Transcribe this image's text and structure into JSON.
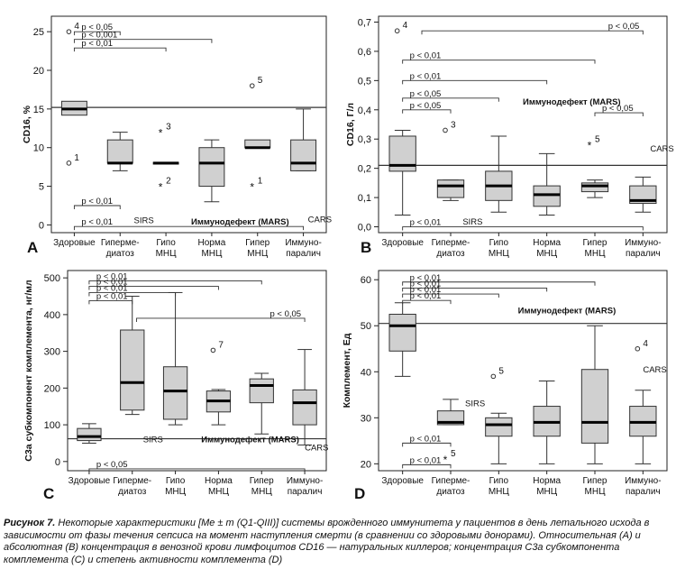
{
  "figure": {
    "caption_label": "Рисунок 7.",
    "caption_text": "Некоторые характеристики [Me ± m (Q1-QIII)] системы врожденного иммунитета у пациентов в день летального исхода в зависимости от фазы течения сепсиса на момент наступления смерти (в сравнении со здоровыми донорами). Относительная (А) и абсолютная (В) концентрация в венозной крови лимфоцитов CD16 — натуральных киллеров; концентрация C3a субкомпонента комплемента (С) и степень активности комплемента (D)",
    "categories": [
      "Здоровые",
      "Гиперме-\nдиатоз",
      "Гипо\nМНЦ",
      "Норма\nМНЦ",
      "Гипер\nМНЦ",
      "Иммуно-\nпаралич"
    ]
  },
  "chart_data": [
    {
      "type": "box",
      "panel_label": "A",
      "ylabel": "CD16, %",
      "ylim": [
        -1,
        27
      ],
      "yticks": [
        0,
        5,
        10,
        15,
        20,
        25
      ],
      "reference_line": 15.2,
      "boxes": [
        {
          "whisker_low": null,
          "q1": 14.2,
          "median": 15,
          "q3": 16,
          "whisker_high": null
        },
        {
          "whisker_low": 7,
          "q1": 8,
          "median": 8,
          "q3": 11,
          "whisker_high": 12
        },
        {
          "whisker_low": null,
          "q1": 7.9,
          "median": 8,
          "q3": 8.1,
          "whisker_high": null
        },
        {
          "whisker_low": 3,
          "q1": 5,
          "median": 8,
          "q3": 10,
          "whisker_high": 11
        },
        {
          "whisker_low": null,
          "q1": 10,
          "median": 10,
          "q3": 11,
          "whisker_high": null
        },
        {
          "whisker_low": 7,
          "q1": 7,
          "median": 8,
          "q3": 11,
          "whisker_high": 15
        }
      ],
      "outliers": [
        {
          "x": 0,
          "y": 8,
          "marker": "o",
          "label": "1"
        },
        {
          "x": 0,
          "y": 25,
          "marker": "o",
          "label": "4"
        },
        {
          "x": 2,
          "y": 12,
          "marker": "*",
          "label": "3"
        },
        {
          "x": 2,
          "y": 5,
          "marker": "*",
          "label": "2"
        },
        {
          "x": 4,
          "y": 18,
          "marker": "o",
          "label": "5"
        },
        {
          "x": 4,
          "y": 5,
          "marker": "*",
          "label": "1"
        }
      ],
      "brackets": [
        {
          "from": 0,
          "to": 1,
          "y": 25,
          "text": "p < 0,05"
        },
        {
          "from": 0,
          "to": 3,
          "y": 24,
          "text": "p < 0,001"
        },
        {
          "from": 0,
          "to": 2,
          "y": 22.9,
          "text": "p < 0,01"
        },
        {
          "from": 0,
          "to": 1,
          "y": 2.5,
          "text": "p < 0,01"
        },
        {
          "from": 0,
          "to": 5,
          "y": -0.2,
          "text": "p < 0,01"
        }
      ],
      "annotations": [
        {
          "x": 1.3,
          "y": 0.7,
          "text": "SIRS"
        },
        {
          "x": 2.55,
          "y": 0.5,
          "text": "Иммунодефект (MARS)"
        },
        {
          "x": 5.1,
          "y": 0.8,
          "text": "CARS"
        }
      ]
    },
    {
      "type": "box",
      "panel_label": "B",
      "ylabel": "CD16, Г/л",
      "ylim": [
        -0.02,
        0.72
      ],
      "yticks": [
        0.0,
        0.1,
        0.2,
        0.3,
        0.4,
        0.5,
        0.6,
        0.7
      ],
      "ytick_labels": [
        "0,0",
        "0,1",
        "0,2",
        "0,3",
        "0,4",
        "0,5",
        "0,6",
        "0,7"
      ],
      "reference_line": 0.21,
      "boxes": [
        {
          "whisker_low": 0.04,
          "q1": 0.19,
          "median": 0.21,
          "q3": 0.31,
          "whisker_high": 0.33
        },
        {
          "whisker_low": 0.09,
          "q1": 0.1,
          "median": 0.14,
          "q3": 0.16,
          "whisker_high": 0.16
        },
        {
          "whisker_low": 0.05,
          "q1": 0.09,
          "median": 0.14,
          "q3": 0.19,
          "whisker_high": 0.31
        },
        {
          "whisker_low": 0.04,
          "q1": 0.07,
          "median": 0.11,
          "q3": 0.14,
          "whisker_high": 0.25
        },
        {
          "whisker_low": 0.1,
          "q1": 0.12,
          "median": 0.14,
          "q3": 0.15,
          "whisker_high": 0.16
        },
        {
          "whisker_low": 0.05,
          "q1": 0.08,
          "median": 0.09,
          "q3": 0.14,
          "whisker_high": 0.17
        }
      ],
      "outliers": [
        {
          "x": 0,
          "y": 0.67,
          "marker": "o",
          "label": "4"
        },
        {
          "x": 1,
          "y": 0.33,
          "marker": "o",
          "label": "3"
        },
        {
          "x": 4,
          "y": 0.28,
          "marker": "*",
          "label": "5"
        }
      ],
      "brackets": [
        {
          "from": 0.4,
          "to": 5,
          "y": 0.67,
          "text": "p < 0,05"
        },
        {
          "from": 0,
          "to": 4,
          "y": 0.57,
          "text": "p < 0,01"
        },
        {
          "from": 0,
          "to": 3,
          "y": 0.5,
          "text": "p < 0,01"
        },
        {
          "from": 0,
          "to": 2,
          "y": 0.44,
          "text": "p < 0,05"
        },
        {
          "from": 0,
          "to": 1,
          "y": 0.4,
          "text": "p < 0,05"
        },
        {
          "from": 4,
          "to": 5,
          "y": 0.39,
          "text": "p < 0,05"
        },
        {
          "from": 0,
          "to": 5,
          "y": 0.0,
          "text": "p < 0,01"
        }
      ],
      "annotations": [
        {
          "x": 2.5,
          "y": 0.43,
          "text": "Иммунодефект (MARS)"
        },
        {
          "x": 1.25,
          "y": 0.02,
          "text": "SIRS"
        },
        {
          "x": 5.15,
          "y": 0.27,
          "text": "CARS"
        }
      ]
    },
    {
      "type": "box",
      "panel_label": "C",
      "ylabel": "C3a субкомпонент комплемента, нг/мл",
      "ylim": [
        -25,
        520
      ],
      "yticks": [
        0,
        100,
        200,
        300,
        400,
        500
      ],
      "reference_line": 62,
      "boxes": [
        {
          "whisker_low": 50,
          "q1": 57,
          "median": 68,
          "q3": 90,
          "whisker_high": 103
        },
        {
          "whisker_low": 128,
          "q1": 140,
          "median": 215,
          "q3": 358,
          "whisker_high": 450
        },
        {
          "whisker_low": 100,
          "q1": 115,
          "median": 192,
          "q3": 258,
          "whisker_high": 460
        },
        {
          "whisker_low": 100,
          "q1": 135,
          "median": 165,
          "q3": 192,
          "whisker_high": 196
        },
        {
          "whisker_low": 75,
          "q1": 160,
          "median": 207,
          "q3": 225,
          "whisker_high": 240
        },
        {
          "whisker_low": 45,
          "q1": 100,
          "median": 160,
          "q3": 195,
          "whisker_high": 305
        }
      ],
      "outliers": [
        {
          "x": 3,
          "y": 303,
          "marker": "o",
          "label": "7"
        }
      ],
      "brackets": [
        {
          "from": 0,
          "to": 4,
          "y": 492,
          "text": "p < 0,01"
        },
        {
          "from": 0,
          "to": 3,
          "y": 477,
          "text": "p < 0,01"
        },
        {
          "from": 0,
          "to": 2,
          "y": 460,
          "text": "p < 0,01"
        },
        {
          "from": 0,
          "to": 1,
          "y": 438,
          "text": "p < 0,01"
        },
        {
          "from": 1.1,
          "to": 5,
          "y": 390,
          "text": "p < 0,05"
        },
        {
          "from": 0,
          "to": 5,
          "y": -20,
          "text": "p < 0,05"
        }
      ],
      "annotations": [
        {
          "x": 1.25,
          "y": 62,
          "text": "SIRS"
        },
        {
          "x": 2.6,
          "y": 62,
          "text": "Иммунодефект (MARS)"
        },
        {
          "x": 5.0,
          "y": 40,
          "text": "CARS"
        }
      ]
    },
    {
      "type": "box",
      "panel_label": "D",
      "ylabel": "Комплемент, Ед",
      "ylim": [
        18.5,
        62
      ],
      "yticks": [
        20,
        30,
        40,
        50,
        60
      ],
      "reference_line": 50.5,
      "boxes": [
        {
          "whisker_low": 39,
          "q1": 44.5,
          "median": 50,
          "q3": 52.5,
          "whisker_high": 55
        },
        {
          "whisker_low": 28.5,
          "q1": 28.5,
          "median": 29,
          "q3": 31.5,
          "whisker_high": 34
        },
        {
          "whisker_low": 20,
          "q1": 26,
          "median": 28.5,
          "q3": 30,
          "whisker_high": 31
        },
        {
          "whisker_low": 20,
          "q1": 26,
          "median": 29,
          "q3": 32.5,
          "whisker_high": 38
        },
        {
          "whisker_low": 20,
          "q1": 24.5,
          "median": 29,
          "q3": 40.5,
          "whisker_high": 50
        },
        {
          "whisker_low": 20,
          "q1": 26,
          "median": 29,
          "q3": 32.5,
          "whisker_high": 36
        }
      ],
      "outliers": [
        {
          "x": 2,
          "y": 39,
          "marker": "o",
          "label": "5"
        },
        {
          "x": 5,
          "y": 45,
          "marker": "o",
          "label": "4"
        },
        {
          "x": 1,
          "y": 21,
          "marker": "*",
          "label": "5"
        }
      ],
      "brackets": [
        {
          "from": 0,
          "to": 4,
          "y": 59.5,
          "text": "p < 0,01"
        },
        {
          "from": 0,
          "to": 3,
          "y": 58.2,
          "text": "p < 0,01"
        },
        {
          "from": 0,
          "to": 2,
          "y": 56.9,
          "text": "p < 0,01"
        },
        {
          "from": 0,
          "to": 1,
          "y": 55.5,
          "text": "p < 0,01"
        },
        {
          "from": 0,
          "to": 1,
          "y": 24.5,
          "text": "p < 0,01"
        },
        {
          "from": 0,
          "to": 1,
          "y": 19.8,
          "text": "p < 0,01"
        }
      ],
      "annotations": [
        {
          "x": 2.4,
          "y": 53.5,
          "text": "Иммунодефект (MARS)"
        },
        {
          "x": 1.3,
          "y": 33.3,
          "text": "SIRS"
        },
        {
          "x": 5.0,
          "y": 40.6,
          "text": "CARS"
        }
      ]
    }
  ]
}
